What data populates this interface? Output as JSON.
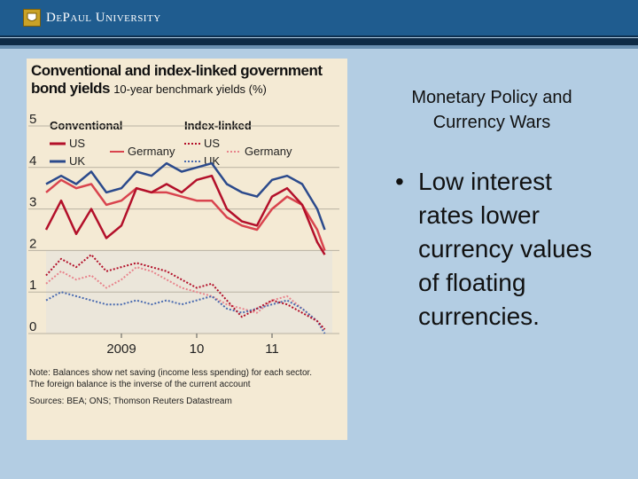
{
  "header": {
    "university": "DePaul University"
  },
  "slide": {
    "title_line1": "Monetary Policy and",
    "title_line2": "Currency Wars",
    "bullet_symbol": "•",
    "bullet_text": "Low interest rates lower currency values of floating currencies."
  },
  "chart_data": {
    "type": "line",
    "title": "Conventional and index-linked government bond yields",
    "subtitle": "10-year benchmark yields (%)",
    "legend": {
      "group1": "Conventional",
      "group2": "Index-linked",
      "us": "US",
      "germany": "Germany",
      "uk": "UK"
    },
    "x_ticks": [
      "2009",
      "10",
      "11"
    ],
    "y_ticks": [
      "0",
      "1",
      "2",
      "3",
      "4",
      "5"
    ],
    "ylim": [
      0,
      5
    ],
    "x_range": [
      2008.0,
      2011.8
    ],
    "x_tick_values": [
      2009.0,
      2010.0,
      2011.0
    ],
    "series": [
      {
        "name": "UK conventional",
        "color": "#2b4a8c",
        "style": "solid",
        "x": [
          2008.0,
          2008.2,
          2008.4,
          2008.6,
          2008.8,
          2009.0,
          2009.2,
          2009.4,
          2009.6,
          2009.8,
          2010.0,
          2010.2,
          2010.4,
          2010.6,
          2010.8,
          2011.0,
          2011.2,
          2011.4,
          2011.6,
          2011.7
        ],
        "y": [
          3.6,
          3.8,
          3.6,
          3.9,
          3.4,
          3.5,
          3.9,
          3.8,
          4.1,
          3.9,
          4.0,
          4.1,
          3.6,
          3.4,
          3.3,
          3.7,
          3.8,
          3.6,
          3.0,
          2.5
        ]
      },
      {
        "name": "Germany conventional",
        "color": "#d9444e",
        "style": "solid",
        "x": [
          2008.0,
          2008.2,
          2008.4,
          2008.6,
          2008.8,
          2009.0,
          2009.2,
          2009.4,
          2009.6,
          2009.8,
          2010.0,
          2010.2,
          2010.4,
          2010.6,
          2010.8,
          2011.0,
          2011.2,
          2011.4,
          2011.6,
          2011.7
        ],
        "y": [
          3.4,
          3.7,
          3.5,
          3.6,
          3.1,
          3.2,
          3.5,
          3.4,
          3.4,
          3.3,
          3.2,
          3.2,
          2.8,
          2.6,
          2.5,
          3.0,
          3.3,
          3.1,
          2.5,
          2.0
        ]
      },
      {
        "name": "US conventional",
        "color": "#b3102a",
        "style": "solid",
        "x": [
          2008.0,
          2008.2,
          2008.4,
          2008.6,
          2008.8,
          2009.0,
          2009.2,
          2009.4,
          2009.6,
          2009.8,
          2010.0,
          2010.2,
          2010.4,
          2010.6,
          2010.8,
          2011.0,
          2011.2,
          2011.4,
          2011.6,
          2011.7
        ],
        "y": [
          2.5,
          3.2,
          2.4,
          3.0,
          2.3,
          2.6,
          3.5,
          3.4,
          3.6,
          3.4,
          3.7,
          3.8,
          3.0,
          2.7,
          2.6,
          3.3,
          3.5,
          3.1,
          2.2,
          1.9
        ]
      },
      {
        "name": "Germany index-linked",
        "color": "#e8848c",
        "style": "dotted",
        "x": [
          2008.0,
          2008.2,
          2008.4,
          2008.6,
          2008.8,
          2009.0,
          2009.2,
          2009.4,
          2009.6,
          2009.8,
          2010.0,
          2010.2,
          2010.4,
          2010.6,
          2010.8,
          2011.0,
          2011.2,
          2011.4,
          2011.6,
          2011.7
        ],
        "y": [
          1.2,
          1.5,
          1.3,
          1.4,
          1.1,
          1.3,
          1.6,
          1.5,
          1.3,
          1.1,
          1.0,
          0.9,
          0.7,
          0.6,
          0.5,
          0.8,
          0.9,
          0.6,
          0.3,
          0.1
        ]
      },
      {
        "name": "UK index-linked",
        "color": "#4a6bb0",
        "style": "dotted",
        "x": [
          2008.0,
          2008.2,
          2008.4,
          2008.6,
          2008.8,
          2009.0,
          2009.2,
          2009.4,
          2009.6,
          2009.8,
          2010.0,
          2010.2,
          2010.4,
          2010.6,
          2010.8,
          2011.0,
          2011.2,
          2011.4,
          2011.6,
          2011.7
        ],
        "y": [
          0.8,
          1.0,
          0.9,
          0.8,
          0.7,
          0.7,
          0.8,
          0.7,
          0.8,
          0.7,
          0.8,
          0.9,
          0.6,
          0.5,
          0.6,
          0.7,
          0.8,
          0.6,
          0.3,
          0.0
        ]
      },
      {
        "name": "US index-linked",
        "color": "#b3102a",
        "style": "dotted",
        "x": [
          2008.0,
          2008.2,
          2008.4,
          2008.6,
          2008.8,
          2009.0,
          2009.2,
          2009.4,
          2009.6,
          2009.8,
          2010.0,
          2010.2,
          2010.4,
          2010.6,
          2010.8,
          2011.0,
          2011.2,
          2011.4,
          2011.6,
          2011.7
        ],
        "y": [
          1.4,
          1.8,
          1.6,
          1.9,
          1.5,
          1.6,
          1.7,
          1.6,
          1.5,
          1.3,
          1.1,
          1.2,
          0.8,
          0.4,
          0.6,
          0.8,
          0.7,
          0.5,
          0.3,
          0.1
        ]
      }
    ],
    "note_line1": "Note: Balances show net saving (income less spending) for each sector.",
    "note_line2": "The foreign balance is the inverse of the current account",
    "source": "Sources: BEA; ONS; Thomson Reuters Datastream"
  }
}
